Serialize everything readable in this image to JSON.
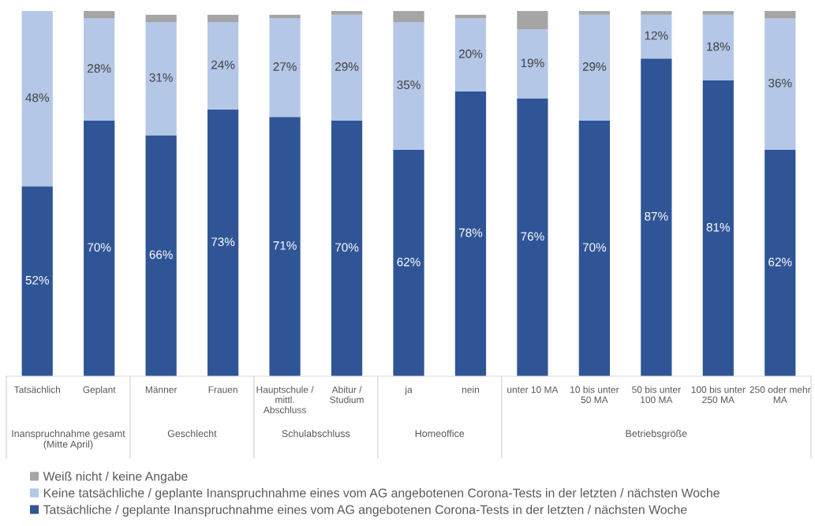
{
  "chart_data": {
    "type": "bar",
    "stacked": true,
    "categories": [
      "Tatsächlich",
      "Geplant",
      "Männer",
      "Frauen",
      "Hauptschule /\nmittl.\nAbschluss",
      "Abitur /\nStudium",
      "ja",
      "nein",
      "unter 10 MA",
      "10 bis unter\n50 MA",
      "50 bis unter\n100 MA",
      "100 bis unter\n250 MA",
      "250 oder mehr\nMA"
    ],
    "series": [
      {
        "name": "Tatsächliche / geplante Inanspruchnahme eines vom AG angebotenen Corona-Tests in der letzten / nächsten Woche",
        "color": "#2f5597",
        "values": [
          52,
          70,
          66,
          73,
          71,
          70,
          62,
          78,
          76,
          70,
          87,
          81,
          62
        ],
        "value_labels": [
          "52%",
          "70%",
          "66%",
          "73%",
          "71%",
          "70%",
          "62%",
          "78%",
          "76%",
          "70%",
          "87%",
          "81%",
          "62%"
        ]
      },
      {
        "name": "Keine tatsächliche / geplante Inanspruchnahme eines vom AG angebotenen Corona-Tests in der letzten / nächsten Woche",
        "color": "#b4c7e7",
        "values": [
          48,
          28,
          31,
          24,
          27,
          29,
          35,
          20,
          19,
          29,
          12,
          18,
          36
        ],
        "value_labels": [
          "48%",
          "28%",
          "31%",
          "24%",
          "27%",
          "29%",
          "35%",
          "20%",
          "19%",
          "29%",
          "12%",
          "18%",
          "36%"
        ]
      },
      {
        "name": "Weiß nicht / keine Angabe",
        "color": "#a5a5a5",
        "values": [
          null,
          2,
          2,
          2,
          1,
          1,
          3,
          1,
          5,
          1,
          1,
          1,
          2
        ]
      }
    ],
    "ylim": [
      0,
      100
    ],
    "tick_labels": "x",
    "grid": false,
    "legend": "bottom",
    "annotations": [
      "Inanspruchnahme gesamt\n(Mitte April)",
      "Geschlecht",
      "Schulabschluss",
      "Homeoffice",
      "Betriebsgröße"
    ]
  }
}
